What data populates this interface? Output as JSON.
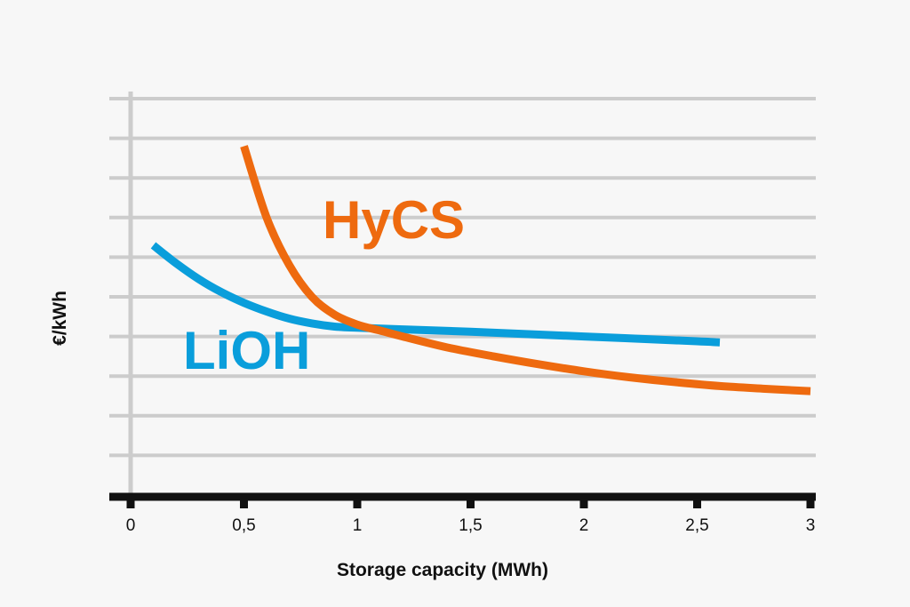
{
  "chart_data": {
    "type": "line",
    "title": "",
    "xlabel": "Storage capacity (MWh)",
    "ylabel": "€/kWh",
    "xlim": [
      0,
      3
    ],
    "ylim": [
      0,
      10
    ],
    "x_ticks": [
      {
        "value": 0,
        "label": "0"
      },
      {
        "value": 0.5,
        "label": "0,5"
      },
      {
        "value": 1,
        "label": "1"
      },
      {
        "value": 1.5,
        "label": "1,5"
      },
      {
        "value": 2,
        "label": "2"
      },
      {
        "value": 2.5,
        "label": "2,5"
      },
      {
        "value": 3,
        "label": "3"
      }
    ],
    "y_grid": [
      1,
      2,
      3,
      4,
      5,
      6,
      7,
      8,
      9,
      10
    ],
    "y_tick_labels": false,
    "grid": true,
    "legend": "none",
    "series": [
      {
        "name": "HyCS",
        "color": "#ee6a0f",
        "x": [
          0.5,
          0.6,
          0.7,
          0.8,
          0.9,
          1.0,
          1.1,
          1.2,
          1.4,
          1.6,
          1.8,
          2.0,
          2.2,
          2.4,
          2.6,
          2.8,
          3.0
        ],
        "y": [
          8.8,
          7.0,
          5.8,
          5.0,
          4.55,
          4.3,
          4.15,
          4.0,
          3.72,
          3.5,
          3.3,
          3.12,
          2.97,
          2.85,
          2.75,
          2.68,
          2.62
        ]
      },
      {
        "name": "LiOH",
        "color": "#0a9edb",
        "x": [
          0.1,
          0.2,
          0.3,
          0.4,
          0.5,
          0.6,
          0.7,
          0.8,
          0.9,
          1.0,
          1.2,
          1.5,
          2.0,
          2.5,
          2.6
        ],
        "y": [
          6.3,
          5.85,
          5.45,
          5.12,
          4.85,
          4.63,
          4.45,
          4.33,
          4.25,
          4.22,
          4.18,
          4.12,
          4.0,
          3.88,
          3.85
        ]
      }
    ]
  }
}
